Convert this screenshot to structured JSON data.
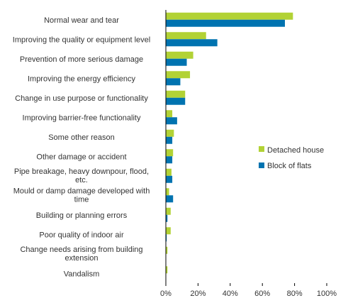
{
  "chart_data": {
    "type": "bar",
    "orientation": "horizontal",
    "categories": [
      [
        "Normal wear and tear"
      ],
      [
        "Improving the quality or equipment level"
      ],
      [
        "Prevention of more serious damage"
      ],
      [
        "Improving the energy efficiency"
      ],
      [
        "Change in use purpose or functionality"
      ],
      [
        "Improving barrier-free functionality"
      ],
      [
        "Some other reason"
      ],
      [
        "Other damage or accident"
      ],
      [
        "Pipe breakage, heavy downpour, flood,",
        "etc."
      ],
      [
        "Mould or damp damage developed with",
        "time"
      ],
      [
        "Building or planning errors"
      ],
      [
        "Poor quality of indoor air"
      ],
      [
        "Change needs arising from building",
        "extension"
      ],
      [
        "Vandalism"
      ]
    ],
    "series": [
      {
        "name": "Detached house",
        "color": "#b2d235",
        "values": [
          79,
          25,
          17,
          15,
          12,
          4,
          5,
          4.5,
          3.5,
          2,
          3,
          3,
          1,
          1
        ]
      },
      {
        "name": "Block of flats",
        "color": "#0073b0",
        "values": [
          74,
          32,
          13,
          9,
          12,
          7,
          4,
          4,
          4,
          4.5,
          1,
          0.5,
          0,
          0
        ]
      }
    ],
    "x_ticks": [
      "0%",
      "20%",
      "40%",
      "60%",
      "80%",
      "100%"
    ],
    "xlim": [
      0,
      100
    ],
    "legend_position": "right-middle",
    "grid": false
  }
}
